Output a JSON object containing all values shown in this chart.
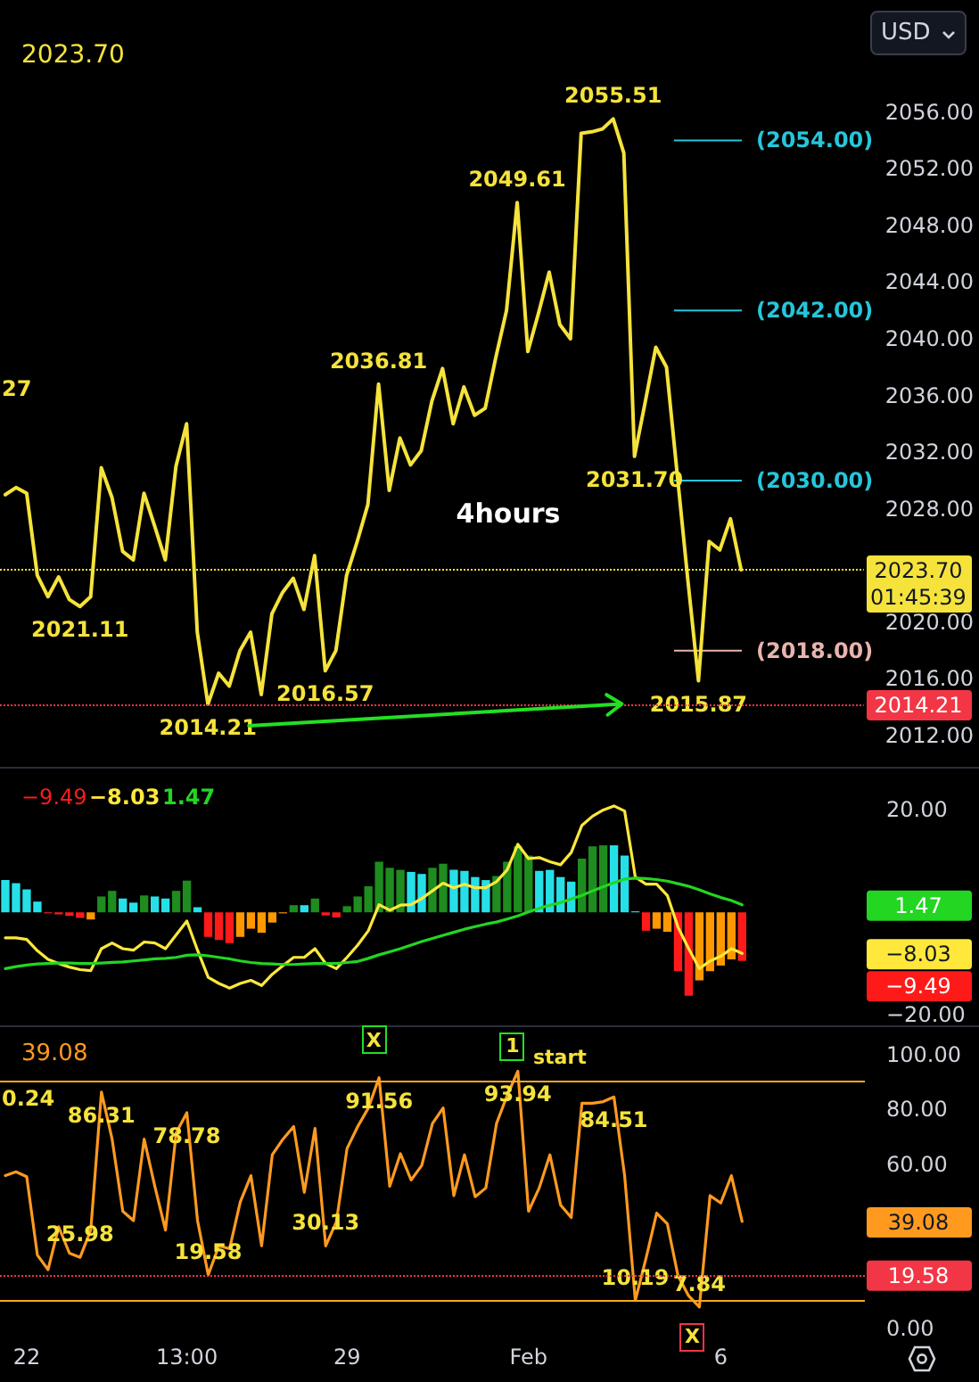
{
  "chart_data": [
    {
      "type": "line",
      "categories": [
        null,
        null,
        null,
        null,
        null,
        null,
        null,
        null,
        null,
        null,
        null,
        null,
        null,
        null,
        null,
        null,
        null,
        null,
        null,
        null,
        null,
        null,
        null,
        null,
        null,
        null,
        null,
        null,
        null,
        null,
        null,
        null,
        null,
        null,
        null,
        null,
        null,
        null,
        null,
        null,
        null,
        null,
        null,
        null,
        null,
        null,
        null,
        null,
        null,
        null,
        null,
        null,
        null,
        null,
        null,
        null,
        null,
        null,
        null,
        null,
        null,
        null,
        null,
        null,
        null,
        null,
        null,
        null,
        null,
        null
      ],
      "series": [
        {
          "color": "#f5e33b",
          "values": [
            2029.0,
            2029.5,
            2029.1,
            2023.3,
            2021.8,
            2023.2,
            2021.6,
            2021.11,
            2021.8,
            2030.9,
            2028.8,
            2025.0,
            2024.4,
            2029.1,
            2026.8,
            2024.4,
            2031.0,
            2034.0,
            2019.3,
            2014.21,
            2016.4,
            2015.5,
            2018.0,
            2019.3,
            2014.9,
            2020.6,
            2022.1,
            2023.1,
            2020.9,
            2024.7,
            2016.57,
            2018.0,
            2023.3,
            2025.7,
            2028.3,
            2036.81,
            2029.3,
            2033.0,
            2031.1,
            2032.1,
            2035.6,
            2037.9,
            2034.0,
            2036.6,
            2034.6,
            2035.1,
            2038.7,
            2042.0,
            2049.61,
            2039.1,
            2041.8,
            2044.7,
            2041.0,
            2040.0,
            2054.5,
            2054.6,
            2054.8,
            2055.51,
            2053.1,
            2031.7,
            2035.5,
            2039.4,
            2038.0,
            2030.5,
            2023.0,
            2015.87,
            2025.7,
            2025.1,
            2027.3,
            2023.7
          ],
          "value_labels": [
            null,
            null,
            null,
            null,
            null,
            null,
            null,
            "2021.11",
            null,
            null,
            null,
            null,
            null,
            null,
            null,
            null,
            null,
            null,
            null,
            "2014.21",
            null,
            null,
            null,
            null,
            null,
            null,
            null,
            null,
            null,
            null,
            "2016.57",
            null,
            null,
            null,
            null,
            "2036.81",
            null,
            null,
            null,
            null,
            null,
            null,
            null,
            null,
            null,
            null,
            null,
            null,
            "2049.61",
            null,
            null,
            null,
            null,
            null,
            null,
            null,
            null,
            "2055.51",
            null,
            "2031.70",
            null,
            null,
            null,
            null,
            null,
            "2015.87",
            null,
            null,
            null,
            null
          ]
        }
      ],
      "ylim": [
        2009.8,
        2063.9
      ],
      "yticks": [
        {
          "value": 2012,
          "label": "2012.00"
        },
        {
          "value": 2016,
          "label": "2016.00"
        },
        {
          "value": 2020,
          "label": "2020.00"
        },
        {
          "value": 2028,
          "label": "2028.00"
        },
        {
          "value": 2032,
          "label": "2032.00"
        },
        {
          "value": 2036,
          "label": "2036.00"
        },
        {
          "value": 2040,
          "label": "2040.00"
        },
        {
          "value": 2044,
          "label": "2044.00"
        },
        {
          "value": 2048,
          "label": "2048.00"
        },
        {
          "value": 2052,
          "label": "2052.00"
        },
        {
          "value": 2056,
          "label": "2056.00"
        }
      ],
      "tick_labels": "y",
      "ref_lines": [
        {
          "axis": "y",
          "value": 2054,
          "label": "(2054.00)",
          "color": "#26c6da",
          "line_style": "solid"
        },
        {
          "axis": "y",
          "value": 2042,
          "label": "(2042.00)",
          "color": "#26c6da",
          "line_style": "solid"
        },
        {
          "axis": "y",
          "value": 2030,
          "label": "(2030.00)",
          "color": "#26c6da",
          "line_style": "solid"
        },
        {
          "axis": "y",
          "value": 2018,
          "label": "(2018.00)",
          "color": "#e8b4ae",
          "line_style": "solid"
        },
        {
          "axis": "y",
          "value": 2023.7,
          "label": "2023.70\n01:45:39",
          "color": "#f5e33b",
          "line_style": "dotted"
        },
        {
          "axis": "y",
          "value": 2014.21,
          "label": "2014.21",
          "color": "#f23645",
          "line_style": "dotted"
        }
      ],
      "annotations": [
        "2023.70",
        "USD",
        "4hours",
        "27"
      ]
    },
    {
      "type": "bar",
      "categories": [
        null,
        null,
        null,
        null,
        null,
        null,
        null,
        null,
        null,
        null,
        null,
        null,
        null,
        null,
        null,
        null,
        null,
        null,
        null,
        null,
        null,
        null,
        null,
        null,
        null,
        null,
        null,
        null,
        null,
        null,
        null,
        null,
        null,
        null,
        null,
        null,
        null,
        null,
        null,
        null,
        null,
        null,
        null,
        null,
        null,
        null,
        null,
        null,
        null,
        null,
        null,
        null,
        null,
        null,
        null,
        null,
        null,
        null,
        null,
        null,
        null,
        null,
        null,
        null,
        null,
        null,
        null,
        null,
        null,
        null
      ],
      "series": [
        {
          "colors": [
            "#26e0e8",
            "#26e0e8",
            "#26e0e8",
            "#26e0e8",
            "#ff1a1a",
            "#ff1a1a",
            "#ff1a1a",
            "#ff1a1a",
            "#ff9800",
            "#1e8c1e",
            "#1e8c1e",
            "#26e0e8",
            "#26e0e8",
            "#1e8c1e",
            "#26e0e8",
            "#26e0e8",
            "#1e8c1e",
            "#1e8c1e",
            "#26e0e8",
            "#ff1a1a",
            "#ff1a1a",
            "#ff1a1a",
            "#ff9800",
            "#ff9800",
            "#ff9800",
            "#ff9800",
            "#ff9800",
            "#1e8c1e",
            "#26e0e8",
            "#1e8c1e",
            "#ff1a1a",
            "#ff1a1a",
            "#1e8c1e",
            "#1e8c1e",
            "#1e8c1e",
            "#1e8c1e",
            "#1e8c1e",
            "#1e8c1e",
            "#26e0e8",
            "#26e0e8",
            "#1e8c1e",
            "#1e8c1e",
            "#26e0e8",
            "#26e0e8",
            "#26e0e8",
            "#26e0e8",
            "#1e8c1e",
            "#1e8c1e",
            "#1e8c1e",
            "#1e8c1e",
            "#26e0e8",
            "#26e0e8",
            "#26e0e8",
            "#26e0e8",
            "#1e8c1e",
            "#1e8c1e",
            "#1e8c1e",
            "#26e0e8",
            "#26e0e8",
            "#26e0e8",
            "#ff1a1a",
            "#ff9800",
            "#ff9800",
            "#ff1a1a",
            "#ff1a1a",
            "#ff9800",
            "#ff9800",
            "#ff9800",
            "#ff9800",
            "#ff1a1a"
          ],
          "values": [
            6.3,
            5.7,
            4.5,
            2.1,
            -0.2,
            -0.4,
            -0.7,
            -1.1,
            -1.4,
            3.1,
            4.2,
            2.7,
            1.9,
            3.3,
            3.1,
            2.7,
            4.2,
            6.2,
            1.0,
            -4.8,
            -5.4,
            -6.0,
            -4.8,
            -3.2,
            -4.0,
            -2.0,
            -0.2,
            1.4,
            1.4,
            2.7,
            -0.6,
            -1.0,
            1.2,
            3.1,
            5.1,
            9.9,
            8.7,
            8.3,
            7.9,
            7.5,
            8.7,
            9.5,
            8.3,
            8.1,
            6.9,
            6.3,
            7.1,
            9.9,
            12.9,
            11.1,
            8.1,
            8.3,
            6.9,
            6.0,
            10.5,
            12.9,
            13.1,
            13.1,
            11.1,
            0.2,
            -3.6,
            -3.2,
            -3.8,
            -11.5,
            -16.3,
            -13.3,
            -11.5,
            -10.4,
            -9.2,
            -9.49
          ]
        },
        {
          "type": "line",
          "color": "#ffe83b",
          "values": [
            -5.0,
            -5.0,
            -5.3,
            -7.5,
            -9.2,
            -10.0,
            -10.7,
            -11.2,
            -11.4,
            -7.1,
            -6.0,
            -7.1,
            -7.4,
            -5.8,
            -6.0,
            -7.1,
            -4.4,
            -1.7,
            -7.4,
            -12.7,
            -13.9,
            -14.8,
            -13.9,
            -13.3,
            -14.3,
            -12.1,
            -10.4,
            -8.8,
            -8.8,
            -7.1,
            -10.0,
            -11.0,
            -8.8,
            -6.4,
            -3.6,
            1.5,
            0.4,
            1.4,
            1.5,
            2.7,
            4.2,
            5.7,
            4.8,
            5.5,
            4.8,
            4.8,
            6.0,
            8.3,
            13.3,
            10.5,
            10.7,
            9.9,
            9.3,
            11.7,
            17.0,
            18.8,
            20.0,
            20.8,
            19.8,
            6.9,
            5.5,
            5.5,
            3.3,
            -2.9,
            -7.1,
            -11.0,
            -9.5,
            -8.6,
            -7.1,
            -8.03
          ]
        },
        {
          "type": "line",
          "color": "#22d622",
          "values": [
            -11.0,
            -10.6,
            -10.3,
            -10.1,
            -10.0,
            -9.9,
            -9.9,
            -10.0,
            -10.0,
            -9.9,
            -9.8,
            -9.7,
            -9.5,
            -9.3,
            -9.1,
            -9.0,
            -8.8,
            -8.4,
            -8.3,
            -8.5,
            -8.8,
            -9.1,
            -9.5,
            -9.8,
            -10.0,
            -10.1,
            -10.2,
            -10.2,
            -10.1,
            -10.0,
            -10.0,
            -10.0,
            -9.8,
            -9.6,
            -9.0,
            -8.3,
            -7.7,
            -7.1,
            -6.4,
            -5.7,
            -5.1,
            -4.5,
            -3.9,
            -3.3,
            -2.8,
            -2.3,
            -1.9,
            -1.3,
            -0.7,
            0.1,
            0.8,
            1.4,
            1.9,
            2.6,
            3.3,
            4.2,
            5.0,
            5.8,
            6.5,
            6.7,
            6.6,
            6.4,
            6.1,
            5.6,
            5.1,
            4.4,
            3.6,
            2.9,
            2.3,
            1.47
          ]
        }
      ],
      "ylim": [
        -21.7,
        28.1
      ],
      "yticks": [
        {
          "value": -20,
          "label": "−20.00"
        },
        {
          "value": 20,
          "label": "20.00"
        }
      ],
      "tick_labels": "y",
      "annotations": [
        "−9.49",
        "−8.03",
        "1.47",
        "1.47",
        "−8.03",
        "−9.49"
      ]
    },
    {
      "type": "line",
      "categories": [
        null,
        null,
        "22",
        null,
        null,
        null,
        null,
        null,
        null,
        null,
        null,
        null,
        null,
        null,
        null,
        null,
        null,
        "13:00",
        null,
        null,
        null,
        null,
        null,
        null,
        null,
        null,
        null,
        null,
        null,
        null,
        null,
        null,
        "29",
        null,
        null,
        null,
        null,
        null,
        null,
        null,
        null,
        null,
        null,
        null,
        null,
        null,
        null,
        null,
        null,
        "Feb",
        null,
        null,
        null,
        null,
        null,
        null,
        null,
        null,
        null,
        null,
        null,
        null,
        null,
        null,
        null,
        null,
        null,
        "6",
        null,
        null
      ],
      "series": [
        {
          "color": "#ff9a1f",
          "values": [
            55.8,
            57.2,
            55.4,
            26.8,
            21.5,
            37.1,
            27.5,
            25.98,
            35.9,
            86.31,
            69.1,
            42.8,
            39.4,
            69.1,
            51.9,
            35.9,
            71.4,
            78.78,
            39.4,
            19.58,
            30.2,
            29.1,
            46.2,
            55.8,
            30.2,
            63.4,
            69.1,
            73.7,
            49.7,
            73.0,
            30.13,
            38.9,
            65.7,
            73.7,
            80.5,
            91.56,
            51.9,
            63.8,
            54.2,
            59.5,
            74.8,
            80.5,
            48.5,
            63.4,
            48.1,
            51.3,
            74.8,
            85.1,
            93.94,
            42.8,
            51.3,
            63.4,
            45.1,
            40.5,
            82.2,
            82.2,
            82.8,
            84.51,
            55.8,
            10.19,
            25.6,
            42.1,
            38.2,
            19.2,
            11.9,
            7.84,
            48.5,
            45.8,
            55.8,
            39.08
          ],
          "value_labels": [
            null,
            null,
            null,
            null,
            null,
            null,
            null,
            "25.98",
            null,
            "86.31",
            null,
            null,
            null,
            null,
            null,
            null,
            null,
            "78.78",
            null,
            "19.58",
            null,
            null,
            null,
            null,
            null,
            null,
            null,
            null,
            null,
            null,
            "30.13",
            null,
            null,
            null,
            null,
            "91.56",
            null,
            null,
            null,
            null,
            null,
            null,
            null,
            null,
            null,
            null,
            null,
            null,
            "93.94",
            null,
            null,
            null,
            null,
            null,
            null,
            null,
            null,
            "84.51",
            null,
            "10.19",
            null,
            null,
            null,
            null,
            null,
            "7.84",
            null,
            null,
            null,
            null
          ]
        }
      ],
      "ylim": [
        0,
        110
      ],
      "yticks": [
        {
          "value": 0,
          "label": "0.00"
        },
        {
          "value": 60,
          "label": "60.00"
        },
        {
          "value": 80,
          "label": "80.00"
        },
        {
          "value": 100,
          "label": "100.00"
        }
      ],
      "ref_lines": [
        {
          "axis": "y",
          "value": 90,
          "color": "#f7a823",
          "line_style": "solid"
        },
        {
          "axis": "y",
          "value": 10,
          "color": "#f7a823",
          "line_style": "solid"
        },
        {
          "axis": "y",
          "value": 19.58,
          "label": "19.58",
          "color": "#f23645",
          "line_style": "dotted"
        }
      ],
      "annotations": [
        "39.08",
        "0.24",
        {
          "text": "X",
          "y": 91.56
        },
        {
          "text": "1",
          "y": 93.94
        },
        "start",
        {
          "text": "X",
          "y": 7.84
        },
        "39.08"
      ]
    }
  ]
}
